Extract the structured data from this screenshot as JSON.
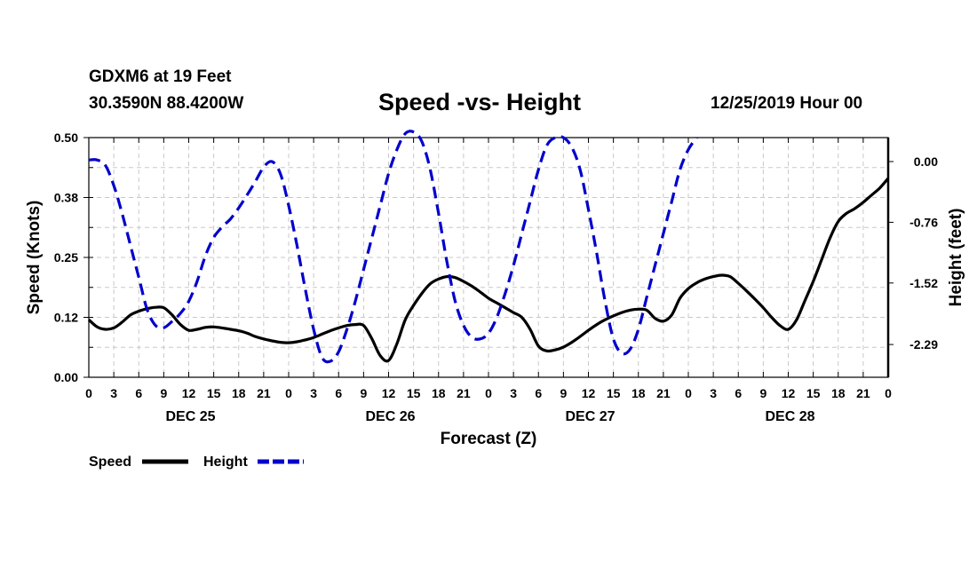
{
  "header": {
    "station": "GDXM6 at 19 Feet",
    "coords": "30.3590N 88.4200W",
    "issued": "12/25/2019 Hour 00"
  },
  "chart_data": {
    "type": "line",
    "title": "Speed -vs- Height",
    "xlabel": "Forecast (Z)",
    "ylabel_left": "Speed (Knots)",
    "ylabel_right": "Height (feet)",
    "xlim": [
      0,
      96
    ],
    "ylim_left": [
      0,
      0.5
    ],
    "ylim_right": [
      -2.7,
      0.3
    ],
    "left_ticks": [
      {
        "v": 0,
        "label": "0.00"
      },
      {
        "v": 0.125,
        "label": "0.12"
      },
      {
        "v": 0.25,
        "label": "0.25"
      },
      {
        "v": 0.375,
        "label": "0.38"
      },
      {
        "v": 0.5,
        "label": "0.50"
      }
    ],
    "right_ticks": [
      {
        "v": 0,
        "label": "0.00"
      },
      {
        "v": -0.76,
        "label": "-0.76"
      },
      {
        "v": -1.52,
        "label": "-1.52"
      },
      {
        "v": -2.29,
        "label": "-2.29"
      }
    ],
    "x_tick_labels": [
      "0",
      "3",
      "6",
      "9",
      "12",
      "15",
      "18",
      "21",
      "0",
      "3",
      "6",
      "9",
      "12",
      "15",
      "18",
      "21",
      "0",
      "3",
      "6",
      "9",
      "12",
      "15",
      "18",
      "21",
      "0",
      "3",
      "6",
      "9",
      "12",
      "15",
      "18",
      "21",
      "0"
    ],
    "day_labels": [
      {
        "hour": 12,
        "label": "DEC 25"
      },
      {
        "hour": 36,
        "label": "DEC 26"
      },
      {
        "hour": 60,
        "label": "DEC 27"
      },
      {
        "hour": 84,
        "label": "DEC 28"
      }
    ],
    "legend": [
      {
        "name": "Speed",
        "color": "#000000",
        "style": "solid"
      },
      {
        "name": "Height",
        "color": "#0000cc",
        "style": "dashed"
      }
    ],
    "series": [
      {
        "name": "Speed",
        "axis": "left",
        "color": "#000000",
        "style": "solid",
        "points": [
          [
            0,
            0.12
          ],
          [
            1,
            0.105
          ],
          [
            2,
            0.1
          ],
          [
            3,
            0.103
          ],
          [
            4,
            0.115
          ],
          [
            5,
            0.13
          ],
          [
            6,
            0.138
          ],
          [
            7,
            0.143
          ],
          [
            8,
            0.146
          ],
          [
            9,
            0.145
          ],
          [
            10,
            0.13
          ],
          [
            11,
            0.11
          ],
          [
            12,
            0.098
          ],
          [
            13,
            0.1
          ],
          [
            14,
            0.104
          ],
          [
            15,
            0.105
          ],
          [
            16,
            0.103
          ],
          [
            17,
            0.1
          ],
          [
            18,
            0.097
          ],
          [
            19,
            0.092
          ],
          [
            20,
            0.085
          ],
          [
            21,
            0.08
          ],
          [
            22,
            0.076
          ],
          [
            23,
            0.073
          ],
          [
            24,
            0.072
          ],
          [
            25,
            0.074
          ],
          [
            26,
            0.078
          ],
          [
            27,
            0.083
          ],
          [
            28,
            0.09
          ],
          [
            29,
            0.097
          ],
          [
            30,
            0.103
          ],
          [
            31,
            0.108
          ],
          [
            32,
            0.11
          ],
          [
            33,
            0.108
          ],
          [
            34,
            0.08
          ],
          [
            35,
            0.045
          ],
          [
            36,
            0.035
          ],
          [
            37,
            0.07
          ],
          [
            38,
            0.12
          ],
          [
            39,
            0.15
          ],
          [
            40,
            0.175
          ],
          [
            41,
            0.195
          ],
          [
            42,
            0.205
          ],
          [
            43,
            0.21
          ],
          [
            44,
            0.208
          ],
          [
            45,
            0.2
          ],
          [
            46,
            0.19
          ],
          [
            47,
            0.178
          ],
          [
            48,
            0.165
          ],
          [
            49,
            0.155
          ],
          [
            50,
            0.145
          ],
          [
            51,
            0.135
          ],
          [
            52,
            0.125
          ],
          [
            53,
            0.1
          ],
          [
            54,
            0.065
          ],
          [
            55,
            0.055
          ],
          [
            56,
            0.057
          ],
          [
            57,
            0.063
          ],
          [
            58,
            0.073
          ],
          [
            59,
            0.085
          ],
          [
            60,
            0.098
          ],
          [
            61,
            0.11
          ],
          [
            62,
            0.12
          ],
          [
            63,
            0.128
          ],
          [
            64,
            0.135
          ],
          [
            65,
            0.14
          ],
          [
            66,
            0.142
          ],
          [
            67,
            0.14
          ],
          [
            68,
            0.123
          ],
          [
            69,
            0.117
          ],
          [
            70,
            0.13
          ],
          [
            71,
            0.165
          ],
          [
            72,
            0.185
          ],
          [
            73,
            0.197
          ],
          [
            74,
            0.205
          ],
          [
            75,
            0.21
          ],
          [
            76,
            0.213
          ],
          [
            77,
            0.21
          ],
          [
            78,
            0.196
          ],
          [
            79,
            0.18
          ],
          [
            80,
            0.163
          ],
          [
            81,
            0.145
          ],
          [
            82,
            0.125
          ],
          [
            83,
            0.108
          ],
          [
            84,
            0.1
          ],
          [
            85,
            0.12
          ],
          [
            86,
            0.16
          ],
          [
            87,
            0.2
          ],
          [
            88,
            0.245
          ],
          [
            89,
            0.29
          ],
          [
            90,
            0.325
          ],
          [
            91,
            0.342
          ],
          [
            92,
            0.352
          ],
          [
            93,
            0.365
          ],
          [
            94,
            0.38
          ],
          [
            95,
            0.395
          ],
          [
            96,
            0.415
          ]
        ]
      },
      {
        "name": "Height",
        "axis": "right",
        "color": "#0000cc",
        "style": "dashed",
        "points": [
          [
            0,
            0.02
          ],
          [
            1,
            0.02
          ],
          [
            2,
            -0.05
          ],
          [
            3,
            -0.3
          ],
          [
            4,
            -0.65
          ],
          [
            5,
            -1.05
          ],
          [
            6,
            -1.45
          ],
          [
            7,
            -1.85
          ],
          [
            8,
            -2.05
          ],
          [
            9,
            -2.08
          ],
          [
            10,
            -2.0
          ],
          [
            11,
            -1.9
          ],
          [
            12,
            -1.75
          ],
          [
            13,
            -1.5
          ],
          [
            14,
            -1.18
          ],
          [
            15,
            -0.95
          ],
          [
            16,
            -0.82
          ],
          [
            17,
            -0.72
          ],
          [
            18,
            -0.58
          ],
          [
            19,
            -0.42
          ],
          [
            20,
            -0.25
          ],
          [
            21,
            -0.07
          ],
          [
            22,
            0.0
          ],
          [
            23,
            -0.15
          ],
          [
            24,
            -0.55
          ],
          [
            25,
            -1.05
          ],
          [
            26,
            -1.6
          ],
          [
            27,
            -2.1
          ],
          [
            28,
            -2.45
          ],
          [
            29,
            -2.5
          ],
          [
            30,
            -2.38
          ],
          [
            31,
            -2.1
          ],
          [
            32,
            -1.75
          ],
          [
            33,
            -1.35
          ],
          [
            34,
            -0.95
          ],
          [
            35,
            -0.55
          ],
          [
            36,
            -0.15
          ],
          [
            37,
            0.15
          ],
          [
            38,
            0.35
          ],
          [
            39,
            0.37
          ],
          [
            40,
            0.25
          ],
          [
            41,
            -0.1
          ],
          [
            42,
            -0.65
          ],
          [
            43,
            -1.25
          ],
          [
            44,
            -1.75
          ],
          [
            45,
            -2.05
          ],
          [
            46,
            -2.2
          ],
          [
            47,
            -2.22
          ],
          [
            48,
            -2.15
          ],
          [
            49,
            -1.95
          ],
          [
            50,
            -1.65
          ],
          [
            51,
            -1.3
          ],
          [
            52,
            -0.9
          ],
          [
            53,
            -0.5
          ],
          [
            54,
            -0.1
          ],
          [
            55,
            0.2
          ],
          [
            56,
            0.3
          ],
          [
            57,
            0.3
          ],
          [
            58,
            0.18
          ],
          [
            59,
            -0.1
          ],
          [
            60,
            -0.6
          ],
          [
            61,
            -1.15
          ],
          [
            62,
            -1.75
          ],
          [
            63,
            -2.22
          ],
          [
            64,
            -2.4
          ],
          [
            65,
            -2.35
          ],
          [
            66,
            -2.1
          ],
          [
            67,
            -1.7
          ],
          [
            68,
            -1.3
          ],
          [
            69,
            -0.9
          ],
          [
            70,
            -0.5
          ],
          [
            71,
            -0.1
          ],
          [
            72,
            0.15
          ],
          [
            73,
            0.3
          ]
        ]
      }
    ]
  }
}
